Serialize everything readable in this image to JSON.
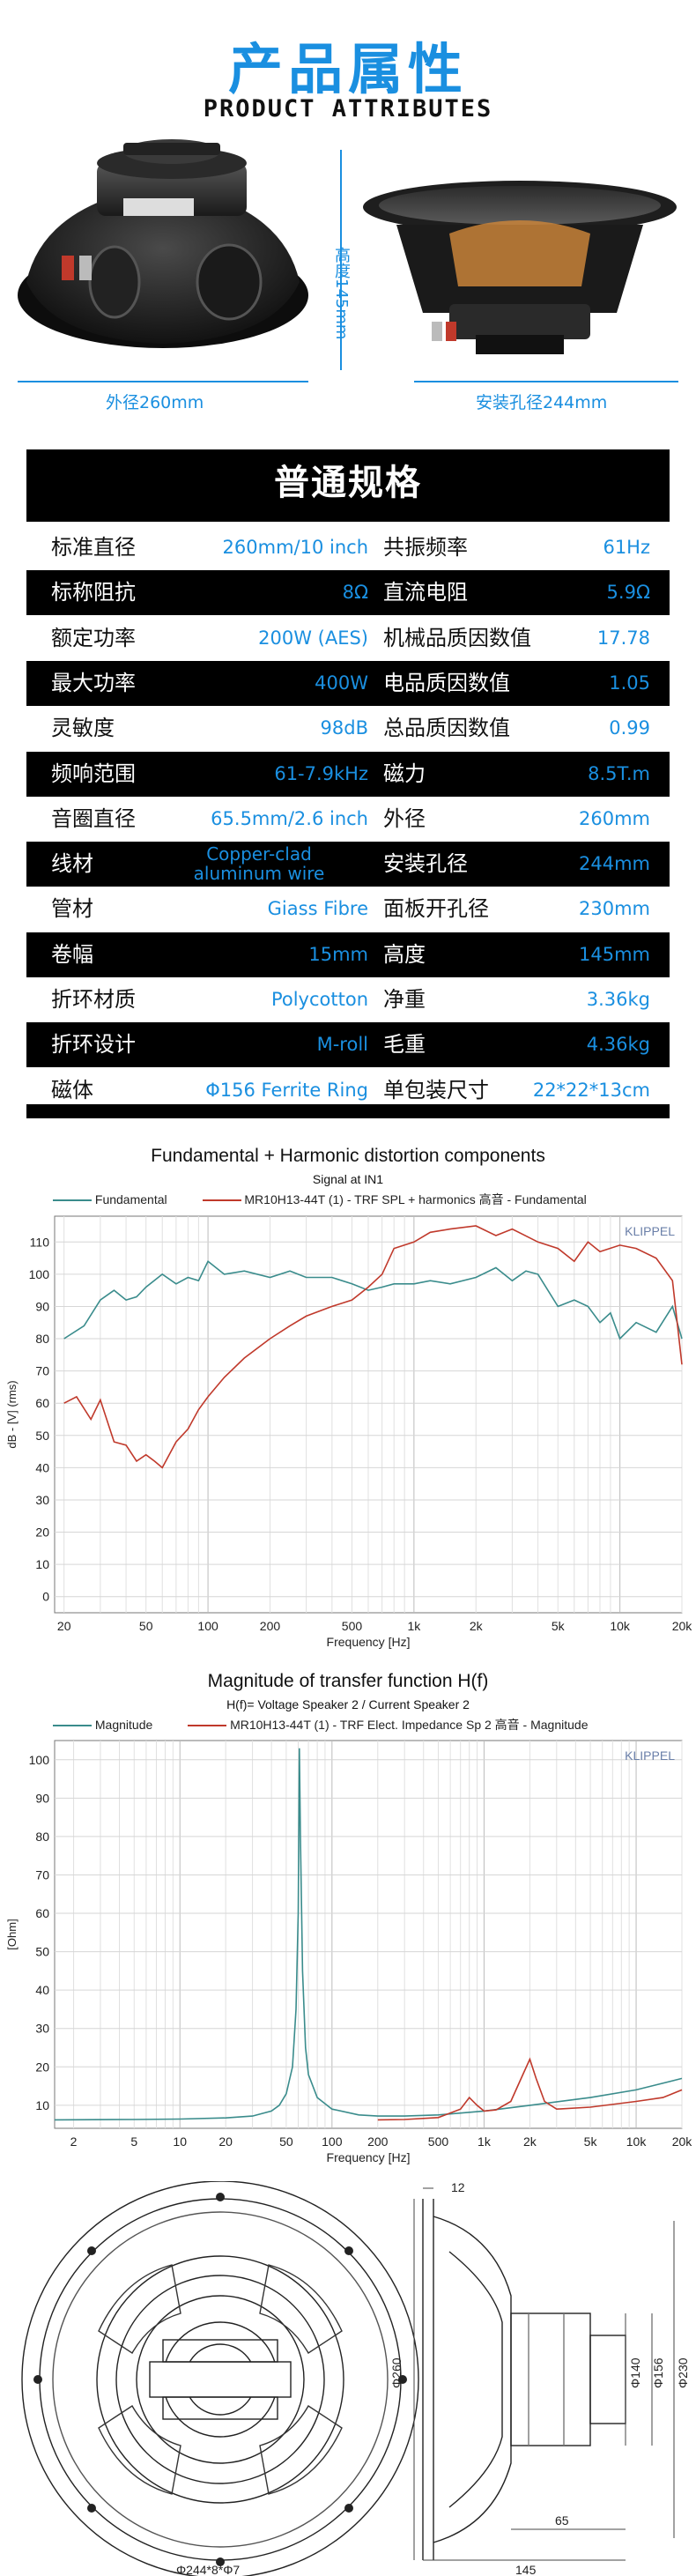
{
  "header": {
    "title_cn": "产品属性",
    "title_en": "PRODUCT ATTRIBUTES"
  },
  "product_photos": {
    "outer_diameter_label": "外径260mm",
    "height_label": "高度145mm",
    "mount_hole_label": "安装孔径244mm"
  },
  "specs": {
    "heading": "普通规格",
    "rows": [
      {
        "l1": "标准直径",
        "v1": "260mm/10 inch",
        "l2": "共振频率",
        "v2": "61Hz",
        "dark": false
      },
      {
        "l1": "标称阻抗",
        "v1": "8Ω",
        "l2": "直流电阻",
        "v2": "5.9Ω",
        "dark": true
      },
      {
        "l1": "额定功率",
        "v1": "200W   (AES)",
        "l2": "机械品质因数值",
        "v2": "17.78",
        "dark": false
      },
      {
        "l1": "最大功率",
        "v1": "400W",
        "l2": "电品质因数值",
        "v2": "1.05",
        "dark": true
      },
      {
        "l1": "灵敏度",
        "v1": "98dB",
        "l2": "总品质因数值",
        "v2": "0.99",
        "dark": false
      },
      {
        "l1": "频响范围",
        "v1": "61-7.9kHz",
        "l2": "磁力",
        "v2": "8.5T.m",
        "dark": true
      },
      {
        "l1": "音圈直径",
        "v1": "65.5mm/2.6 inch",
        "l2": "外径",
        "v2": "260mm",
        "dark": false
      },
      {
        "l1": "线材",
        "v1a": "Copper-clad",
        "v1b": "aluminum wire",
        "l2": "安装孔径",
        "v2": "244mm",
        "dark": true
      },
      {
        "l1": "管材",
        "v1": "Giass Fibre",
        "l2": "面板开孔径",
        "v2": "230mm",
        "dark": false
      },
      {
        "l1": "卷幅",
        "v1": "15mm",
        "l2": "高度",
        "v2": "145mm",
        "dark": true
      },
      {
        "l1": "折环材质",
        "v1": "Polycotton",
        "l2": "净重",
        "v2": "3.36kg",
        "dark": false
      },
      {
        "l1": "折环设计",
        "v1": "M-roll",
        "l2": "毛重",
        "v2": "4.36kg",
        "dark": true
      },
      {
        "l1": "磁体",
        "v1": "Φ156   Ferrite Ring",
        "l2": "单包装尺寸",
        "v2": "22*22*13cm",
        "dark": false
      }
    ]
  },
  "chart_data": [
    {
      "type": "line",
      "title": "Fundamental + Harmonic distortion components",
      "subtitle": "Signal at IN1",
      "xlabel": "Frequency [Hz]",
      "ylabel": "dB - [V] (rms)",
      "watermark": "KLIPPEL",
      "x_scale": "log",
      "xlim": [
        18,
        20000
      ],
      "ylim": [
        -5,
        118
      ],
      "xticks": [
        20,
        50,
        100,
        200,
        500,
        1000,
        2000,
        5000,
        10000,
        20000
      ],
      "xtick_labels": [
        "20",
        "50",
        "100",
        "200",
        "500",
        "1k",
        "2k",
        "5k",
        "10k",
        "20k"
      ],
      "yticks": [
        0,
        10,
        20,
        30,
        40,
        50,
        60,
        70,
        80,
        90,
        100,
        110
      ],
      "ytick_labels": [
        "0",
        "10",
        "20",
        "30",
        "40",
        "50",
        "60",
        "70",
        "80",
        "90",
        "100",
        "110"
      ],
      "grid": true,
      "legend": "top",
      "series": [
        {
          "name": "Fundamental",
          "color": "#3a8c8c",
          "x": [
            20,
            25,
            30,
            35,
            40,
            45,
            50,
            60,
            70,
            80,
            90,
            100,
            120,
            150,
            200,
            250,
            300,
            400,
            500,
            600,
            700,
            800,
            1000,
            1200,
            1500,
            2000,
            2500,
            3000,
            3500,
            4000,
            5000,
            6000,
            7000,
            8000,
            9000,
            10000,
            12000,
            15000,
            18000,
            20000
          ],
          "y": [
            80,
            84,
            92,
            95,
            92,
            93,
            96,
            100,
            97,
            99,
            98,
            104,
            100,
            101,
            99,
            101,
            99,
            99,
            97,
            95,
            96,
            97,
            97,
            98,
            97,
            99,
            102,
            98,
            101,
            100,
            90,
            92,
            90,
            85,
            88,
            80,
            85,
            82,
            90,
            80
          ]
        },
        {
          "name": "MR10H13-44T (1) - TRF SPL + harmonics 高音 - Fundamental",
          "color": "#c0392b",
          "x": [
            20,
            23,
            27,
            30,
            35,
            40,
            45,
            50,
            55,
            60,
            70,
            80,
            90,
            100,
            120,
            150,
            200,
            250,
            300,
            400,
            500,
            600,
            700,
            800,
            1000,
            1200,
            1500,
            2000,
            2500,
            3000,
            4000,
            5000,
            6000,
            7000,
            8000,
            10000,
            12000,
            15000,
            18000,
            20000
          ],
          "y": [
            60,
            62,
            55,
            61,
            48,
            47,
            42,
            44,
            42,
            40,
            48,
            52,
            58,
            62,
            68,
            74,
            80,
            84,
            87,
            90,
            92,
            96,
            100,
            108,
            110,
            113,
            114,
            115,
            112,
            114,
            110,
            108,
            104,
            110,
            107,
            109,
            108,
            105,
            98,
            72
          ]
        }
      ]
    },
    {
      "type": "line",
      "title": "Magnitude of transfer function H(f)",
      "subtitle": "H(f)= Voltage Speaker 2 / Current Speaker 2",
      "xlabel": "Frequency [Hz]",
      "ylabel": "[Ohm]",
      "watermark": "KLIPPEL",
      "x_scale": "log",
      "xlim": [
        1.5,
        20000
      ],
      "ylim": [
        4,
        105
      ],
      "xticks": [
        2,
        5,
        10,
        20,
        50,
        100,
        200,
        500,
        1000,
        2000,
        5000,
        10000,
        20000
      ],
      "xtick_labels": [
        "2",
        "5",
        "10",
        "20",
        "50",
        "100",
        "200",
        "500",
        "1k",
        "2k",
        "5k",
        "10k",
        "20k"
      ],
      "yticks": [
        10,
        20,
        30,
        40,
        50,
        60,
        70,
        80,
        90,
        100
      ],
      "ytick_labels": [
        "10",
        "20",
        "30",
        "40",
        "50",
        "60",
        "70",
        "80",
        "90",
        "100"
      ],
      "grid": true,
      "legend": "top",
      "series": [
        {
          "name": "Magnitude",
          "color": "#3a8c8c",
          "x": [
            1.5,
            5,
            10,
            20,
            30,
            40,
            45,
            50,
            55,
            58,
            60,
            61,
            62,
            64,
            67,
            70,
            80,
            100,
            150,
            200,
            300,
            500,
            1000,
            2000,
            5000,
            10000,
            20000
          ],
          "y": [
            6.2,
            6.3,
            6.4,
            6.7,
            7.2,
            8.5,
            10,
            13,
            20,
            35,
            60,
            103,
            80,
            45,
            25,
            18,
            12,
            9,
            7.5,
            7.2,
            7.2,
            7.5,
            8.5,
            10,
            12,
            14,
            17
          ]
        },
        {
          "name": "MR10H13-44T (1) - TRF Elect. Impedance Sp 2 高音 - Magnitude",
          "color": "#c0392b",
          "x": [
            200,
            300,
            500,
            700,
            800,
            900,
            1000,
            1200,
            1500,
            1800,
            2000,
            2200,
            2500,
            3000,
            5000,
            10000,
            15000,
            20000
          ],
          "y": [
            6.2,
            6.3,
            6.8,
            9,
            12,
            10,
            8.5,
            8.8,
            11,
            18,
            22,
            17,
            11,
            9,
            9.5,
            11,
            12,
            14
          ]
        }
      ]
    }
  ],
  "drawing": {
    "dims": [
      "12",
      "Φ260",
      "Φ140",
      "Φ156",
      "Φ230",
      "65",
      "145",
      "Φ244*8*Φ7"
    ]
  }
}
